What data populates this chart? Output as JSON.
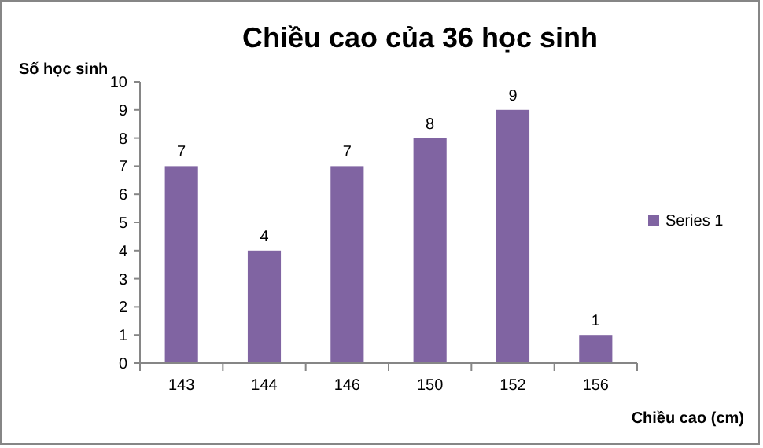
{
  "chart_data": {
    "type": "bar",
    "title": "Chiều cao của 36 học sinh",
    "xlabel": "Chiều cao (cm)",
    "ylabel": "Số học sinh",
    "categories": [
      "143",
      "144",
      "146",
      "150",
      "152",
      "156"
    ],
    "series": [
      {
        "name": "Series 1",
        "color": "#8064a2",
        "values": [
          7,
          4,
          7,
          8,
          9,
          1
        ]
      }
    ],
    "ylim": [
      0,
      10
    ],
    "yticks": [
      0,
      1,
      2,
      3,
      4,
      5,
      6,
      7,
      8,
      9,
      10
    ],
    "grid": false,
    "legend": "right",
    "data_labels": true
  }
}
